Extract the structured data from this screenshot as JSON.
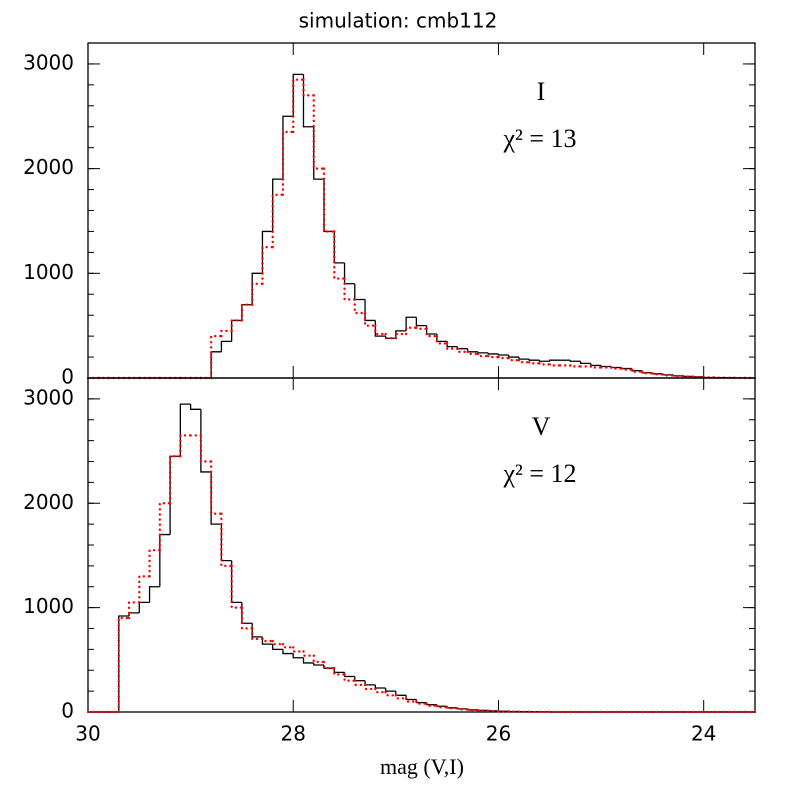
{
  "chart_data": [
    {
      "type": "histogram",
      "title": "simulation: cmb112",
      "annotations": [
        "I",
        "χ² = 13"
      ],
      "xlim": [
        30,
        23.5
      ],
      "ylim": [
        0,
        3200
      ],
      "xticks": [
        30,
        28,
        26,
        24
      ],
      "yticks": [
        0,
        1000,
        2000,
        3000
      ],
      "show_xticklabels": false,
      "bins": [
        30,
        29.9,
        29.8,
        29.7,
        29.6,
        29.5,
        29.4,
        29.3,
        29.2,
        29.1,
        29,
        28.9,
        28.8,
        28.7,
        28.6,
        28.5,
        28.4,
        28.3,
        28.2,
        28.1,
        28,
        27.9,
        27.8,
        27.7,
        27.6,
        27.5,
        27.4,
        27.3,
        27.2,
        27.1,
        27,
        26.9,
        26.8,
        26.7,
        26.6,
        26.5,
        26.4,
        26.3,
        26.2,
        26.1,
        26,
        25.9,
        25.8,
        25.7,
        25.6,
        25.5,
        25.4,
        25.3,
        25.2,
        25.1,
        25,
        24.9,
        24.8,
        24.7,
        24.6,
        24.5,
        24.4,
        24.3,
        24.2,
        24.1,
        24,
        23.9,
        23.8,
        23.7,
        23.6,
        23.5
      ],
      "series": [
        {
          "color": "#000000",
          "style": "solid",
          "values": [
            0,
            0,
            0,
            0,
            0,
            0,
            0,
            0,
            0,
            0,
            0,
            0,
            250,
            350,
            550,
            700,
            1000,
            1400,
            1900,
            2500,
            2900,
            2400,
            1900,
            1400,
            1100,
            900,
            750,
            550,
            400,
            380,
            450,
            580,
            500,
            420,
            350,
            300,
            280,
            250,
            240,
            230,
            220,
            200,
            180,
            170,
            160,
            170,
            170,
            160,
            140,
            120,
            110,
            100,
            90,
            70,
            50,
            40,
            30,
            20,
            15,
            10,
            5,
            3,
            2,
            1,
            0
          ]
        },
        {
          "color": "#ff0000",
          "style": "dotted",
          "values": [
            0,
            0,
            0,
            0,
            0,
            0,
            0,
            0,
            0,
            0,
            0,
            0,
            400,
            450,
            550,
            700,
            900,
            1250,
            1750,
            2350,
            2850,
            2700,
            2000,
            1400,
            950,
            750,
            620,
            500,
            420,
            380,
            420,
            480,
            470,
            400,
            330,
            280,
            250,
            230,
            210,
            200,
            190,
            170,
            150,
            140,
            130,
            120,
            120,
            110,
            110,
            100,
            100,
            90,
            80,
            60,
            45,
            35,
            25,
            18,
            12,
            8,
            5,
            3,
            2,
            1,
            0
          ]
        }
      ]
    },
    {
      "type": "histogram",
      "xlabel": "mag (V,I)",
      "annotations": [
        "V",
        "χ² = 12"
      ],
      "xlim": [
        30,
        23.5
      ],
      "ylim": [
        0,
        3200
      ],
      "xticks": [
        30,
        28,
        26,
        24
      ],
      "yticks": [
        0,
        1000,
        2000,
        3000
      ],
      "show_xticklabels": true,
      "bins": [
        30,
        29.9,
        29.8,
        29.7,
        29.6,
        29.5,
        29.4,
        29.3,
        29.2,
        29.1,
        29,
        28.9,
        28.8,
        28.7,
        28.6,
        28.5,
        28.4,
        28.3,
        28.2,
        28.1,
        28,
        27.9,
        27.8,
        27.7,
        27.6,
        27.5,
        27.4,
        27.3,
        27.2,
        27.1,
        27,
        26.9,
        26.8,
        26.7,
        26.6,
        26.5,
        26.4,
        26.3,
        26.2,
        26.1,
        26,
        25.9,
        25.8,
        25.7,
        25.6,
        25.5,
        25.4,
        25.3,
        25.2,
        25.1,
        25,
        24.9,
        24.8,
        24.7,
        24.6,
        24.5,
        24.4,
        24.3,
        24.2,
        24.1,
        24,
        23.9,
        23.8,
        23.7,
        23.6,
        23.5
      ],
      "series": [
        {
          "color": "#000000",
          "style": "solid",
          "values": [
            0,
            0,
            0,
            920,
            950,
            1050,
            1200,
            1700,
            2450,
            2950,
            2900,
            2300,
            1800,
            1450,
            1050,
            850,
            720,
            650,
            600,
            560,
            520,
            470,
            450,
            420,
            380,
            340,
            300,
            260,
            230,
            200,
            160,
            120,
            90,
            70,
            55,
            40,
            30,
            20,
            15,
            10,
            7,
            5,
            3,
            2,
            1,
            0,
            0,
            0,
            0,
            0,
            0,
            0,
            0,
            0,
            0,
            0,
            0,
            0,
            0,
            0,
            0,
            0,
            0,
            0,
            0
          ]
        },
        {
          "color": "#ff0000",
          "style": "dotted",
          "values": [
            0,
            0,
            0,
            900,
            1050,
            1300,
            1550,
            2000,
            2450,
            2650,
            2650,
            2400,
            1900,
            1400,
            1000,
            800,
            700,
            680,
            650,
            620,
            580,
            540,
            480,
            420,
            360,
            300,
            260,
            220,
            190,
            160,
            130,
            100,
            80,
            60,
            45,
            35,
            25,
            18,
            12,
            8,
            5,
            3,
            2,
            1,
            1,
            0,
            0,
            0,
            0,
            0,
            0,
            0,
            0,
            0,
            0,
            0,
            0,
            0,
            0,
            0,
            0,
            0,
            0,
            0,
            0
          ]
        }
      ]
    }
  ]
}
